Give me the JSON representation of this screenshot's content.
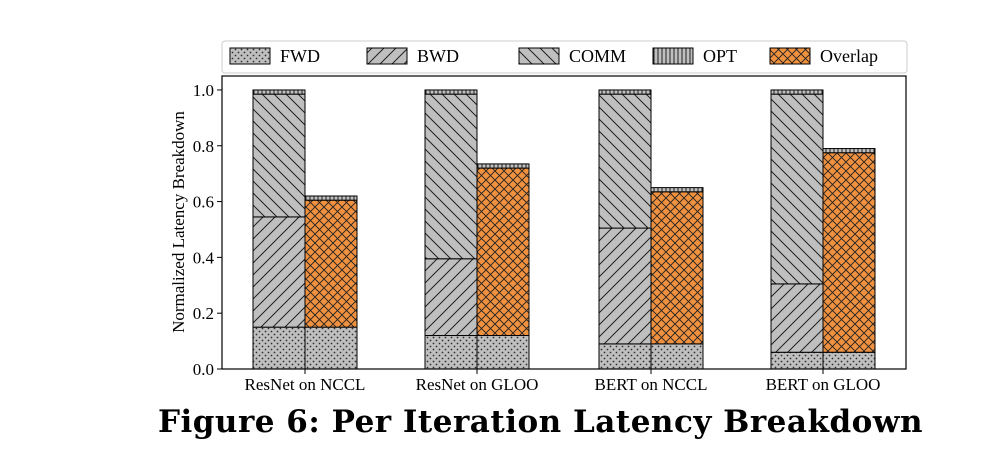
{
  "caption": "Figure 6: Per Iteration Latency Breakdown",
  "chart_data": {
    "type": "bar",
    "stacked": true,
    "categories": [
      "ResNet on NCCL",
      "ResNet on GLOO",
      "BERT on NCCL",
      "BERT on GLOO"
    ],
    "ylabel": "Normalized Latency Breakdown",
    "xlabel": "",
    "ylim": [
      0,
      1.05
    ],
    "yticks": [
      "0.0",
      "0.2",
      "0.4",
      "0.6",
      "0.8",
      "1.0"
    ],
    "legend": {
      "placement": "top",
      "entries": [
        {
          "name": "FWD",
          "color": "#bfbfbf",
          "pattern": "dots"
        },
        {
          "name": "BWD",
          "color": "#bfbfbf",
          "pattern": "forward-diagonal"
        },
        {
          "name": "COMM",
          "color": "#bfbfbf",
          "pattern": "back-diagonal"
        },
        {
          "name": "OPT",
          "color": "#bfbfbf",
          "pattern": "vertical"
        },
        {
          "name": "Overlap",
          "color": "#f0913f",
          "pattern": "crosshatch"
        }
      ]
    },
    "groups": [
      {
        "category": "ResNet on NCCL",
        "non_overlap": {
          "FWD": 0.15,
          "BWD": 0.395,
          "COMM": 0.44,
          "OPT": 0.015
        },
        "overlap": {
          "FWD": 0.15,
          "Overlap": 0.455,
          "OPT": 0.015
        }
      },
      {
        "category": "ResNet on GLOO",
        "non_overlap": {
          "FWD": 0.12,
          "BWD": 0.275,
          "COMM": 0.59,
          "OPT": 0.015
        },
        "overlap": {
          "FWD": 0.12,
          "Overlap": 0.6,
          "OPT": 0.015
        }
      },
      {
        "category": "BERT on NCCL",
        "non_overlap": {
          "FWD": 0.09,
          "BWD": 0.415,
          "COMM": 0.48,
          "OPT": 0.015
        },
        "overlap": {
          "FWD": 0.09,
          "Overlap": 0.545,
          "OPT": 0.015
        }
      },
      {
        "category": "BERT on GLOO",
        "non_overlap": {
          "FWD": 0.06,
          "BWD": 0.245,
          "COMM": 0.68,
          "OPT": 0.015
        },
        "overlap": {
          "FWD": 0.06,
          "Overlap": 0.715,
          "OPT": 0.015
        }
      }
    ],
    "grid": false
  }
}
